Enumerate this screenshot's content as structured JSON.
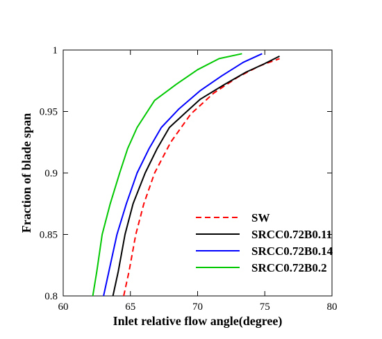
{
  "chart_data": {
    "type": "line",
    "xlabel": "Inlet relative flow angle(degree)",
    "ylabel": "Fraction of blade span",
    "xlim": [
      60,
      80
    ],
    "ylim": [
      0.8,
      1.0
    ],
    "x_ticks": [
      "60",
      "65",
      "70",
      "75",
      "80"
    ],
    "y_ticks": [
      "0.8",
      "0.85",
      "0.9",
      "0.95",
      "1"
    ],
    "x_tick_values": [
      60,
      65,
      70,
      75,
      80
    ],
    "y_tick_values": [
      0.8,
      0.85,
      0.9,
      0.95,
      1.0
    ],
    "grid": false,
    "legend_position": "bottom-right",
    "series": [
      {
        "name": "SW",
        "color": "#ff0000",
        "dash": "dashed",
        "points": [
          [
            64.5,
            0.8
          ],
          [
            64.9,
            0.82
          ],
          [
            65.4,
            0.85
          ],
          [
            66.0,
            0.875
          ],
          [
            66.8,
            0.9
          ],
          [
            68.0,
            0.925
          ],
          [
            69.5,
            0.948
          ],
          [
            71.2,
            0.965
          ],
          [
            73.0,
            0.978
          ],
          [
            74.6,
            0.987
          ],
          [
            76.1,
            0.993
          ]
        ]
      },
      {
        "name": "SRCC0.72B0.11",
        "color": "#000000",
        "dash": "solid",
        "points": [
          [
            63.7,
            0.8
          ],
          [
            64.1,
            0.82
          ],
          [
            64.6,
            0.85
          ],
          [
            65.2,
            0.875
          ],
          [
            66.1,
            0.9
          ],
          [
            67.0,
            0.92
          ],
          [
            67.9,
            0.937
          ],
          [
            69.0,
            0.948
          ],
          [
            70.2,
            0.96
          ],
          [
            72.0,
            0.972
          ],
          [
            73.6,
            0.982
          ],
          [
            75.0,
            0.989
          ],
          [
            76.1,
            0.995
          ]
        ]
      },
      {
        "name": "SRCC0.72B0.14",
        "color": "#0000ff",
        "dash": "solid",
        "points": [
          [
            63.0,
            0.8
          ],
          [
            63.4,
            0.82
          ],
          [
            64.0,
            0.85
          ],
          [
            64.7,
            0.875
          ],
          [
            65.5,
            0.9
          ],
          [
            66.4,
            0.92
          ],
          [
            67.3,
            0.937
          ],
          [
            68.6,
            0.952
          ],
          [
            70.2,
            0.967
          ],
          [
            71.8,
            0.979
          ],
          [
            73.4,
            0.99
          ],
          [
            74.8,
            0.997
          ]
        ]
      },
      {
        "name": "SRCC0.72B0.2",
        "color": "#00c800",
        "dash": "solid",
        "points": [
          [
            62.2,
            0.8
          ],
          [
            62.5,
            0.82
          ],
          [
            62.9,
            0.85
          ],
          [
            63.5,
            0.875
          ],
          [
            64.2,
            0.9
          ],
          [
            64.8,
            0.92
          ],
          [
            65.5,
            0.937
          ],
          [
            66.8,
            0.959
          ],
          [
            68.4,
            0.972
          ],
          [
            70.0,
            0.984
          ],
          [
            71.6,
            0.993
          ],
          [
            73.3,
            0.997
          ]
        ]
      }
    ]
  }
}
